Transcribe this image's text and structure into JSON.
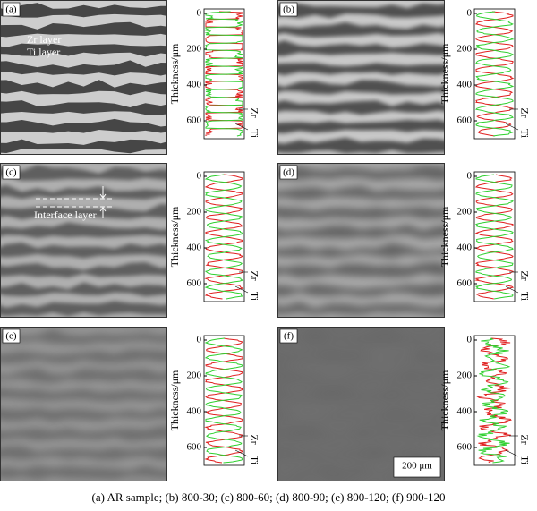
{
  "panels": [
    {
      "label": "(a)",
      "annotations": [
        "Zr layer",
        "Ti layer"
      ],
      "profile": {
        "y_label": "Thickness/μm",
        "ylim": [
          -25,
          700
        ],
        "yticks": [
          0,
          200,
          400,
          600
        ],
        "legend": [
          "Zr",
          "Ti"
        ]
      }
    },
    {
      "label": "(b)",
      "profile": {
        "y_label": "Thickness/μm",
        "ylim": [
          -25,
          700
        ],
        "yticks": [
          0,
          200,
          400,
          600
        ],
        "legend": [
          "Zr",
          "Ti"
        ]
      }
    },
    {
      "label": "(c)",
      "annotations": [
        "Interface layer"
      ],
      "profile": {
        "y_label": "Thickness/μm",
        "ylim": [
          -25,
          700
        ],
        "yticks": [
          0,
          200,
          400,
          600
        ],
        "legend": [
          "Zr",
          "Ti"
        ]
      }
    },
    {
      "label": "(d)",
      "profile": {
        "y_label": "Thickness/μm",
        "ylim": [
          -25,
          700
        ],
        "yticks": [
          0,
          200,
          400,
          600
        ],
        "legend": [
          "Zr",
          "Ti"
        ]
      }
    },
    {
      "label": "(e)",
      "profile": {
        "y_label": "Thickness/μm",
        "ylim": [
          -25,
          700
        ],
        "yticks": [
          0,
          200,
          400,
          600
        ],
        "legend": [
          "Zr",
          "Ti"
        ]
      }
    },
    {
      "label": "(f)",
      "scale_bar": "200 μm",
      "profile": {
        "y_label": "Thickness/μm",
        "ylim": [
          -25,
          700
        ],
        "yticks": [
          0,
          200,
          400,
          600
        ],
        "legend": [
          "Zr",
          "Ti"
        ]
      }
    }
  ],
  "caption": "(a) AR sample; (b) 800-30; (c) 800-60; (d) 800-90; (e) 800-120; (f) 900-120"
}
